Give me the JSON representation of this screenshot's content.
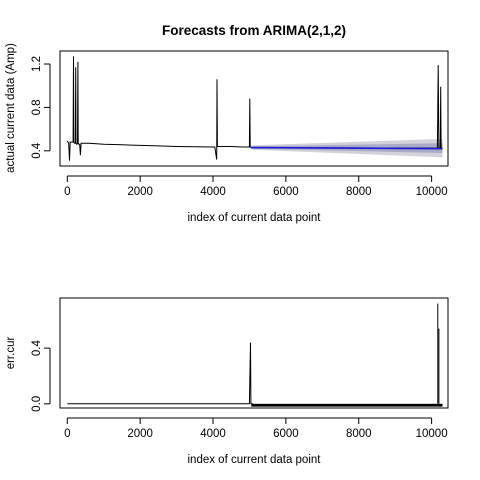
{
  "chart_data": [
    {
      "type": "line",
      "title": "Forecasts from ARIMA(2,1,2)",
      "xlabel": "index of current data point",
      "ylabel": "actual current data (Amp)",
      "xlim": [
        -200,
        10450
      ],
      "ylim": [
        0.26,
        1.32
      ],
      "x_ticks": [
        0,
        2000,
        4000,
        6000,
        8000,
        10000
      ],
      "y_ticks": [
        0.4,
        0.8,
        1.2
      ],
      "grid": false,
      "series": [
        {
          "x": [
            0,
            40,
            60,
            80,
            100,
            160,
            170,
            180,
            200,
            220,
            230,
            240,
            260,
            280,
            290,
            300,
            320,
            340,
            360,
            380,
            400,
            600,
            1000,
            1500,
            2000,
            2500,
            3000,
            3500,
            4000,
            4050,
            4100,
            4110,
            4120,
            4130,
            4150,
            4200,
            4500,
            4800,
            5000,
            5010,
            5020,
            5040
          ],
          "y": [
            0.49,
            0.47,
            0.31,
            0.48,
            0.48,
            0.48,
            1.27,
            0.48,
            0.47,
            0.47,
            1.17,
            0.47,
            0.46,
            0.47,
            1.22,
            0.47,
            0.46,
            0.46,
            0.36,
            0.47,
            0.47,
            0.47,
            0.46,
            0.455,
            0.45,
            0.445,
            0.44,
            0.437,
            0.435,
            0.435,
            0.32,
            1.06,
            0.44,
            0.44,
            0.44,
            0.44,
            0.44,
            0.435,
            0.435,
            0.88,
            0.44,
            0.43
          ]
        }
      ],
      "forecast": {
        "x": [
          5050,
          10300
        ],
        "mean": [
          0.43,
          0.42
        ],
        "band80": [
          [
            0.42,
            0.44
          ],
          [
            0.38,
            0.47
          ]
        ],
        "band95": [
          [
            0.41,
            0.45
          ],
          [
            0.34,
            0.51
          ]
        ],
        "color_mean": "#1c1cd8",
        "color_80": "#a9a9c8",
        "color_95": "#d2d2d8"
      },
      "extra_spikes": {
        "x": [
          10160,
          10180,
          10200
        ],
        "y": [
          0.42,
          1.19,
          0.42
        ],
        "x2": [
          10240,
          10250,
          10260
        ],
        "y2": [
          0.42,
          0.99,
          0.42
        ]
      }
    },
    {
      "type": "line",
      "title": "",
      "xlabel": "index of current data point",
      "ylabel": "err.cur",
      "xlim": [
        -200,
        10450
      ],
      "ylim": [
        -0.03,
        0.76
      ],
      "x_ticks": [
        0,
        2000,
        4000,
        6000,
        8000,
        10000
      ],
      "y_ticks": [
        0.0,
        0.4
      ],
      "grid": false,
      "series": [
        {
          "x": [
            0,
            1000,
            2000,
            3000,
            4000,
            4100,
            4120,
            4140,
            5000,
            5030,
            5040,
            5050,
            5100
          ],
          "y": [
            0.0,
            0.0,
            0.0,
            0.0,
            0.0,
            0.0,
            0.0,
            0.0,
            0.0,
            0.44,
            0.0,
            0.0,
            0.0
          ]
        }
      ],
      "noise_band": {
        "x": [
          5050,
          10300
        ],
        "min": -0.02,
        "max": 0.0
      },
      "spikes": {
        "x": [
          10170,
          10200
        ],
        "y": [
          0.72,
          0.54
        ]
      }
    }
  ]
}
